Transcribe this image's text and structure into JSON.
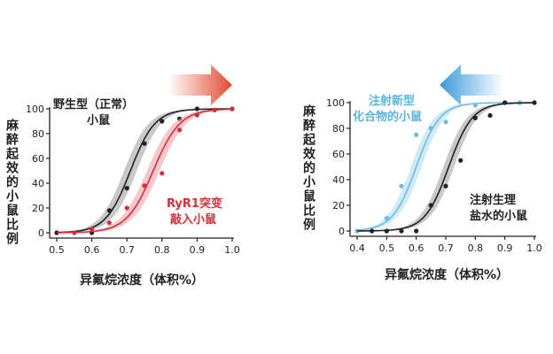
{
  "chart_data": [
    {
      "type": "line",
      "ylabel": "麻醉起效的小鼠比例",
      "xlabel": "异氟烷浓度（体积%）",
      "xlim": [
        0.5,
        1.0
      ],
      "ylim": [
        0,
        100
      ],
      "x_ticks": [
        "0.5",
        "0.6",
        "0.7",
        "0.8",
        "0.9",
        "1.0"
      ],
      "y_ticks": [
        "0",
        "20",
        "40",
        "60",
        "80",
        "100"
      ],
      "arrow_direction": "right",
      "arrow_color": "#e24a33",
      "series": [
        {
          "name": "野生型（正常）小鼠",
          "color": "#222222",
          "band_color": "#9a9a9a",
          "ec50": 0.71,
          "slope": 0.035,
          "points": [
            [
              0.5,
              0
            ],
            [
              0.6,
              0
            ],
            [
              0.65,
              18
            ],
            [
              0.7,
              36
            ],
            [
              0.75,
              72
            ],
            [
              0.8,
              90
            ],
            [
              0.85,
              92
            ],
            [
              0.9,
              100
            ],
            [
              1.0,
              100
            ]
          ]
        },
        {
          "name": "RyR1突变敲入小鼠",
          "color": "#d62d3a",
          "band_color": "#ef9aa0",
          "ec50": 0.775,
          "slope": 0.038,
          "points": [
            [
              0.55,
              0
            ],
            [
              0.6,
              3
            ],
            [
              0.65,
              8
            ],
            [
              0.7,
              20
            ],
            [
              0.75,
              38
            ],
            [
              0.8,
              48
            ],
            [
              0.85,
              83
            ],
            [
              0.9,
              95
            ],
            [
              0.95,
              99
            ],
            [
              1.0,
              100
            ]
          ]
        }
      ]
    },
    {
      "type": "line",
      "ylabel": "麻醉起效的小鼠比例",
      "xlabel": "异氟烷浓度（体积%）",
      "xlim": [
        0.4,
        1.0
      ],
      "ylim": [
        0,
        100
      ],
      "x_ticks": [
        "0.4",
        "0.5",
        "0.6",
        "0.7",
        "0.8",
        "0.9",
        "1.0"
      ],
      "y_ticks": [
        "0",
        "20",
        "40",
        "60",
        "80",
        "100"
      ],
      "arrow_direction": "left",
      "arrow_color": "#3a9ad9",
      "series": [
        {
          "name": "注射新型化合物的小鼠",
          "color": "#6bbde0",
          "band_color": "#a9d8ee",
          "ec50": 0.6,
          "slope": 0.04,
          "points": [
            [
              0.4,
              0
            ],
            [
              0.5,
              10
            ],
            [
              0.55,
              35
            ],
            [
              0.6,
              75
            ],
            [
              0.65,
              80
            ],
            [
              0.7,
              85
            ],
            [
              0.8,
              98
            ],
            [
              0.9,
              100
            ],
            [
              0.95,
              100
            ],
            [
              1.0,
              100
            ]
          ]
        },
        {
          "name": "注射生理盐水的小鼠",
          "color": "#222222",
          "band_color": "#9a9a9a",
          "ec50": 0.71,
          "slope": 0.04,
          "points": [
            [
              0.45,
              0
            ],
            [
              0.5,
              0
            ],
            [
              0.55,
              0
            ],
            [
              0.6,
              0
            ],
            [
              0.65,
              20
            ],
            [
              0.7,
              35
            ],
            [
              0.75,
              55
            ],
            [
              0.8,
              88
            ],
            [
              0.85,
              90
            ],
            [
              0.9,
              100
            ],
            [
              1.0,
              100
            ]
          ]
        }
      ]
    }
  ],
  "labels": {
    "left_wt_line1": "野生型（正常）",
    "left_wt_line2": "小鼠",
    "left_mut_line1": "RyR1突变",
    "left_mut_line2": "敲入小鼠",
    "right_cmp_line1": "注射新型",
    "right_cmp_line2": "化合物的小鼠",
    "right_sal_line1": "注射生理",
    "right_sal_line2": "盐水的小鼠"
  }
}
